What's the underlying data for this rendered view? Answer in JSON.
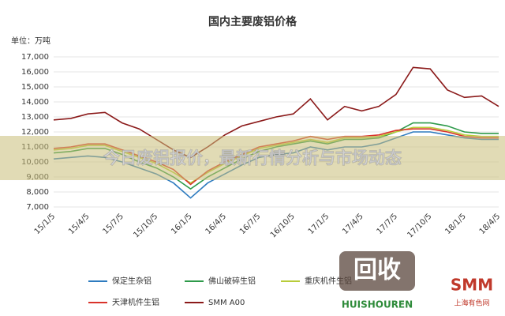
{
  "chart_data": {
    "type": "line",
    "title": "国内主要废铝价格",
    "unit_label": "单位：万吨",
    "categories": [
      "15/1/5",
      null,
      "15/4/5",
      null,
      "15/7/5",
      null,
      "15/10/5",
      null,
      "16/1/5",
      null,
      "16/4/5",
      null,
      "16/7/5",
      null,
      "16/10/5",
      null,
      "17/1/5",
      null,
      "17/4/5",
      null,
      "17/7/5",
      null,
      "17/10/5",
      null,
      "18/1/5",
      null,
      "18/4/5"
    ],
    "ylim": [
      7000,
      17000
    ],
    "yticks": [
      {
        "value": 7000,
        "label": "7,000"
      },
      {
        "value": 8000,
        "label": "8,000"
      },
      {
        "value": 9000,
        "label": "9,000"
      },
      {
        "value": 10000,
        "label": "10,000"
      },
      {
        "value": 11000,
        "label": "11,000"
      },
      {
        "value": 12000,
        "label": "12,000"
      },
      {
        "value": 13000,
        "label": "13,000"
      },
      {
        "value": 14000,
        "label": "14,000"
      },
      {
        "value": 15000,
        "label": "15,000"
      },
      {
        "value": 16000,
        "label": "16,000"
      },
      {
        "value": 17000,
        "label": "17,000"
      }
    ],
    "grid": true,
    "series": [
      {
        "name": "保定生杂铝",
        "color": "#2e7bbf",
        "values": [
          10200,
          10300,
          10400,
          10300,
          10000,
          9600,
          9200,
          8600,
          7600,
          8600,
          9200,
          9800,
          10300,
          10500,
          10600,
          11000,
          10800,
          11000,
          11000,
          11200,
          11600,
          12000,
          12000,
          11800,
          11600,
          11500,
          11500
        ]
      },
      {
        "name": "佛山破碎生铝",
        "color": "#2e9a4a",
        "values": [
          10600,
          10700,
          10900,
          10900,
          10500,
          10000,
          9600,
          9000,
          8200,
          9000,
          9600,
          10200,
          10700,
          11000,
          11200,
          11400,
          11200,
          11500,
          11500,
          11600,
          12000,
          12600,
          12600,
          12400,
          12000,
          11900,
          11900
        ]
      },
      {
        "name": "重庆机件生铝",
        "color": "#b8cc3a",
        "values": [
          10800,
          10900,
          11100,
          11100,
          10700,
          10300,
          9900,
          9300,
          8600,
          9300,
          9900,
          10400,
          10900,
          11100,
          11300,
          11500,
          11300,
          11600,
          11600,
          11700,
          12000,
          12300,
          12300,
          12100,
          11800,
          11700,
          11700
        ]
      },
      {
        "name": "天津机件生铝",
        "color": "#d9332b",
        "values": [
          10900,
          11000,
          11200,
          11200,
          10800,
          10400,
          10000,
          9500,
          8500,
          9400,
          10000,
          10500,
          11000,
          11200,
          11400,
          11700,
          11500,
          11700,
          11700,
          11800,
          12100,
          12200,
          12200,
          12000,
          11700,
          11600,
          11600
        ]
      },
      {
        "name": "SMM A00",
        "color": "#8b1a1a",
        "values": [
          12800,
          12900,
          13200,
          13300,
          12600,
          12200,
          11500,
          10800,
          10300,
          11000,
          11800,
          12400,
          12700,
          13000,
          13200,
          14200,
          12800,
          13700,
          13400,
          13700,
          14500,
          16300,
          16200,
          14800,
          14300,
          14400,
          13700
        ]
      }
    ]
  },
  "banner": {
    "title": "今日废铝报价，最新行情分析与市场动态"
  },
  "logo": {
    "mark": "回收",
    "brand": "HUISHOUREN",
    "smm": "SMM",
    "smm_sub": "上海有色网"
  }
}
